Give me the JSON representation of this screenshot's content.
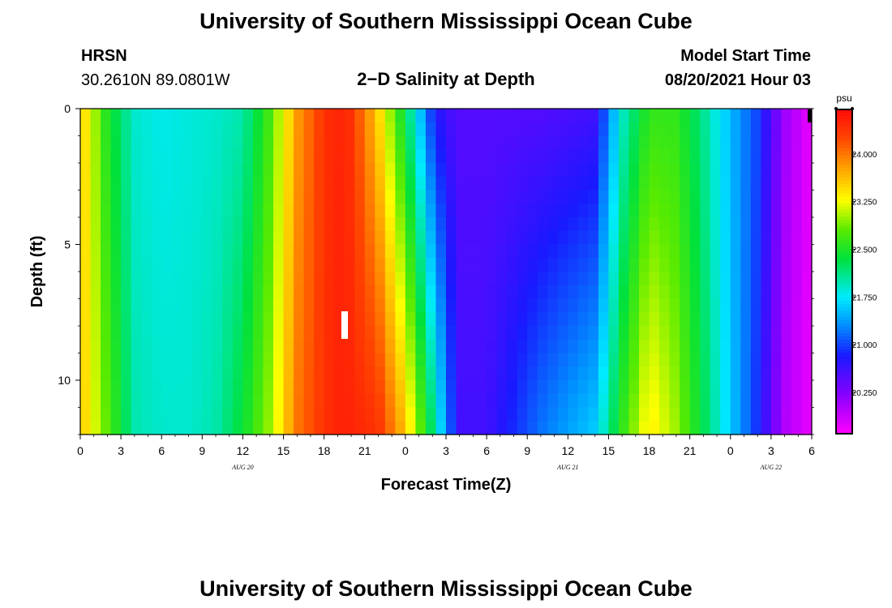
{
  "header": {
    "title_top": "University of Southern Mississippi Ocean Cube",
    "title_bottom": "University of Southern Mississippi Ocean Cube",
    "station": "HRSN",
    "coords": "30.2610N  89.0801W",
    "model_label": "Model Start Time",
    "model_time": "08/20/2021 Hour 03",
    "plot_title": "2−D Salinity at Depth"
  },
  "chart_data": {
    "type": "heatmap",
    "title": "2-D Salinity at Depth",
    "xlabel": "Forecast Time(Z)",
    "ylabel": "Depth (ft)",
    "x_ticks": [
      "0",
      "3",
      "6",
      "9",
      "12",
      "15",
      "18",
      "21",
      "0",
      "3",
      "6",
      "9",
      "12",
      "15",
      "18",
      "21",
      "0",
      "3",
      "6"
    ],
    "x_hours": [
      0,
      3,
      6,
      9,
      12,
      15,
      18,
      21,
      24,
      27,
      30,
      33,
      36,
      39,
      42,
      45,
      48,
      51,
      54
    ],
    "date_labels": [
      {
        "label": "AUG  20",
        "hour": 12
      },
      {
        "label": "AUG  21",
        "hour": 36
      },
      {
        "label": "AUG  22",
        "hour": 51
      }
    ],
    "x_range": [
      0,
      54
    ],
    "y_ticks": [
      "0",
      "5",
      "10"
    ],
    "y_values": [
      0,
      5,
      10
    ],
    "y_range": [
      0,
      12
    ],
    "colorbar": {
      "unit": "psu",
      "labels": [
        "24.000",
        "23.250",
        "22.500",
        "21.750",
        "21.000",
        "20.250"
      ],
      "label_values": [
        24.0,
        23.25,
        22.5,
        21.75,
        21.0,
        20.25
      ],
      "vmin": 19.6,
      "vmax": 24.7
    },
    "time_hours": [
      0,
      2,
      4,
      6,
      8,
      10,
      12,
      14,
      16,
      18,
      19,
      20,
      22,
      24,
      26,
      27,
      28,
      30,
      34,
      38,
      40,
      42,
      44,
      46,
      48,
      50,
      51,
      52,
      54
    ],
    "surface_salinity": [
      23.6,
      22.5,
      21.9,
      21.8,
      21.85,
      21.9,
      22.0,
      22.7,
      23.8,
      24.4,
      24.5,
      24.4,
      23.5,
      22.3,
      20.9,
      20.6,
      20.5,
      20.5,
      20.5,
      20.6,
      21.9,
      22.6,
      22.6,
      22.1,
      21.5,
      21.0,
      20.5,
      20.1,
      19.7
    ],
    "bottom_salinity": [
      23.6,
      22.8,
      22.0,
      21.9,
      21.9,
      22.0,
      22.4,
      23.0,
      24.0,
      24.4,
      24.5,
      24.5,
      24.4,
      23.6,
      22.2,
      21.3,
      20.6,
      20.6,
      21.2,
      21.6,
      22.6,
      23.4,
      23.0,
      22.3,
      21.6,
      20.9,
      20.4,
      20.0,
      19.7
    ]
  }
}
